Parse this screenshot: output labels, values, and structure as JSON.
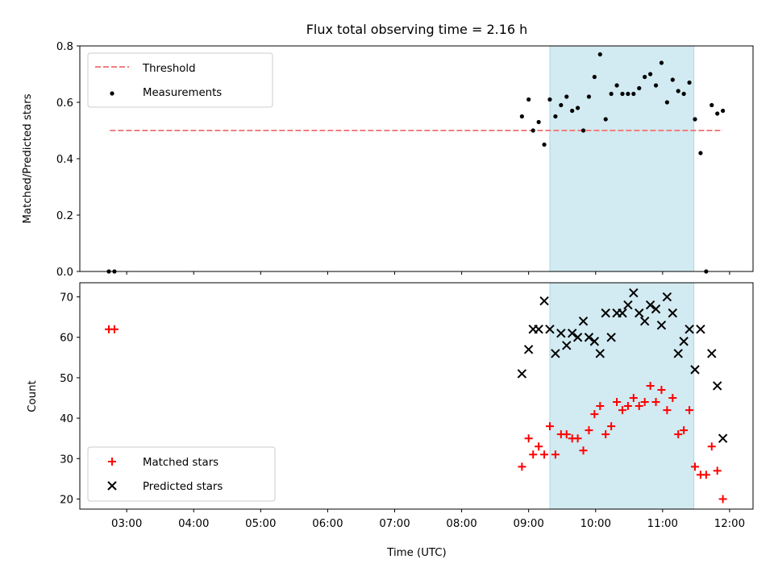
{
  "figure": {
    "title": "Flux total observing time = 2.16 h",
    "xlabel": "Time (UTC)",
    "top_ylabel": "Matched/Predicted stars",
    "bottom_ylabel": "Count"
  },
  "colors": {
    "threshold": "#f08080",
    "measurements": "#000000",
    "matched": "#ff0000",
    "predicted": "#000000",
    "shade": "#add8e6"
  },
  "chart_data": [
    {
      "type": "scatter",
      "title": "Flux total observing time = 2.16 h",
      "xlabel": "",
      "ylabel": "Matched/Predicted stars",
      "x_axis": "time (UTC hours)",
      "xlim": [
        2.3,
        12.35
      ],
      "ylim": [
        0.0,
        0.8
      ],
      "yticks": [
        0.0,
        0.2,
        0.4,
        0.6,
        0.8
      ],
      "ytick_labels": [
        "0.0",
        "0.2",
        "0.4",
        "0.6",
        "0.8"
      ],
      "legend": {
        "placement": "upper left",
        "entries": [
          "Threshold",
          "Measurements"
        ]
      },
      "shaded_x_range": [
        "09:19",
        "11:28"
      ],
      "threshold": {
        "name": "Threshold",
        "y": 0.5,
        "x_range": [
          "02:45",
          "11:54"
        ],
        "style": "dashed"
      },
      "series": [
        {
          "name": "Measurements",
          "x": [
            "02:44",
            "02:49",
            "08:54",
            "09:00",
            "09:04",
            "09:09",
            "09:14",
            "09:19",
            "09:24",
            "09:29",
            "09:34",
            "09:39",
            "09:44",
            "09:49",
            "09:54",
            "09:59",
            "10:04",
            "10:09",
            "10:14",
            "10:19",
            "10:24",
            "10:29",
            "10:34",
            "10:39",
            "10:44",
            "10:49",
            "10:54",
            "10:59",
            "11:04",
            "11:09",
            "11:14",
            "11:19",
            "11:24",
            "11:29",
            "11:34",
            "11:39",
            "11:44",
            "11:49",
            "11:54"
          ],
          "y": [
            0.0,
            0.0,
            0.55,
            0.61,
            0.5,
            0.53,
            0.45,
            0.61,
            0.55,
            0.59,
            0.62,
            0.57,
            0.58,
            0.5,
            0.62,
            0.69,
            0.77,
            0.54,
            0.63,
            0.66,
            0.63,
            0.63,
            0.63,
            0.65,
            0.69,
            0.7,
            0.66,
            0.74,
            0.6,
            0.68,
            0.64,
            0.63,
            0.67,
            0.54,
            0.42,
            0.0,
            0.59,
            0.56,
            0.57
          ]
        }
      ]
    },
    {
      "type": "scatter",
      "title": "",
      "xlabel": "Time (UTC)",
      "ylabel": "Count",
      "x_axis": "time (UTC hours)",
      "xlim": [
        2.3,
        12.35
      ],
      "ylim": [
        17.5,
        73.5
      ],
      "yticks": [
        20,
        30,
        40,
        50,
        60,
        70
      ],
      "ytick_labels": [
        "20",
        "30",
        "40",
        "50",
        "60",
        "70"
      ],
      "xticks": [
        3,
        4,
        5,
        6,
        7,
        8,
        9,
        10,
        11,
        12
      ],
      "xtick_labels": [
        "03:00",
        "04:00",
        "05:00",
        "06:00",
        "07:00",
        "08:00",
        "09:00",
        "10:00",
        "11:00",
        "12:00"
      ],
      "legend": {
        "placement": "lower left",
        "entries": [
          "Matched stars",
          "Predicted stars"
        ]
      },
      "shaded_x_range": [
        "09:19",
        "11:28"
      ],
      "series": [
        {
          "name": "Matched stars",
          "marker": "plus",
          "x": [
            "02:44",
            "02:49",
            "08:54",
            "09:00",
            "09:04",
            "09:09",
            "09:14",
            "09:19",
            "09:24",
            "09:29",
            "09:34",
            "09:39",
            "09:44",
            "09:49",
            "09:54",
            "09:59",
            "10:04",
            "10:09",
            "10:14",
            "10:19",
            "10:24",
            "10:29",
            "10:34",
            "10:39",
            "10:44",
            "10:49",
            "10:54",
            "10:59",
            "11:04",
            "11:09",
            "11:14",
            "11:19",
            "11:24",
            "11:29",
            "11:34",
            "11:39",
            "11:44",
            "11:49",
            "11:54"
          ],
          "y": [
            62,
            62,
            28,
            35,
            31,
            33,
            31,
            38,
            31,
            36,
            36,
            35,
            35,
            32,
            37,
            41,
            43,
            36,
            38,
            44,
            42,
            43,
            45,
            43,
            44,
            48,
            44,
            47,
            42,
            45,
            36,
            37,
            42,
            28,
            26,
            26,
            33,
            27,
            20
          ]
        },
        {
          "name": "Predicted stars",
          "marker": "x",
          "x": [
            "08:54",
            "09:00",
            "09:04",
            "09:09",
            "09:14",
            "09:19",
            "09:24",
            "09:29",
            "09:34",
            "09:39",
            "09:44",
            "09:49",
            "09:54",
            "09:59",
            "10:04",
            "10:09",
            "10:14",
            "10:19",
            "10:24",
            "10:29",
            "10:34",
            "10:39",
            "10:44",
            "10:49",
            "10:54",
            "10:59",
            "11:04",
            "11:09",
            "11:14",
            "11:19",
            "11:24",
            "11:29",
            "11:34",
            "11:39",
            "11:44",
            "11:49",
            "11:54"
          ],
          "y": [
            51,
            57,
            62,
            62,
            69,
            62,
            56,
            61,
            58,
            61,
            60,
            64,
            60,
            59,
            56,
            66,
            60,
            66,
            66,
            68,
            71,
            66,
            64,
            68,
            67,
            63,
            70,
            66,
            56,
            59,
            62,
            52,
            62,
            null,
            56,
            48,
            35
          ]
        }
      ]
    }
  ]
}
